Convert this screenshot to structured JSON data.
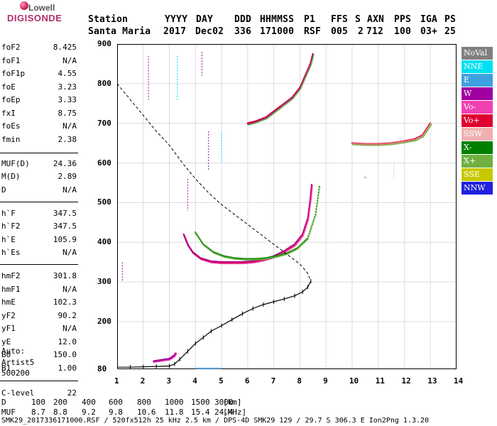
{
  "logo": {
    "line1": "Lowell",
    "line2": "DIGISONDE"
  },
  "header": {
    "col_labels": [
      "Station",
      "YYYY",
      "DAY",
      "DDD",
      "HHMMSS",
      "P1",
      "FFS",
      "S",
      "AXN",
      "PPS",
      "IGA",
      "PS"
    ],
    "values": [
      "Santa Maria",
      "2017",
      "Dec02",
      "336",
      "171000",
      "RSF",
      "005",
      "2",
      "712",
      "100",
      "03+",
      "25"
    ]
  },
  "params": [
    {
      "label": "foF2",
      "value": "8.425"
    },
    {
      "label": "foF1",
      "value": "N/A"
    },
    {
      "label": "foF1p",
      "value": "4.55"
    },
    {
      "label": "foE",
      "value": "3.23"
    },
    {
      "label": "foEp",
      "value": "3.33"
    },
    {
      "label": "fxI",
      "value": "8.75"
    },
    {
      "label": "foEs",
      "value": "N/A"
    },
    {
      "label": "fmin",
      "value": "2.38"
    },
    {
      "label": "MUF(D)",
      "value": "24.36"
    },
    {
      "label": "M(D)",
      "value": "2.89"
    },
    {
      "label": "D",
      "value": "N/A"
    },
    {
      "label": "h`F",
      "value": "347.5"
    },
    {
      "label": "h`F2",
      "value": "347.5"
    },
    {
      "label": "h`E",
      "value": "105.9"
    },
    {
      "label": "h`Es",
      "value": "N/A"
    },
    {
      "label": "hmF2",
      "value": "301.8"
    },
    {
      "label": "hmF1",
      "value": "N/A"
    },
    {
      "label": "hmE",
      "value": "102.3"
    },
    {
      "label": "yF2",
      "value": "90.2"
    },
    {
      "label": "yF1",
      "value": "N/A"
    },
    {
      "label": "yE",
      "value": "12.0"
    },
    {
      "label": "B0",
      "value": "150.0"
    },
    {
      "label": "B1",
      "value": "1.00"
    },
    {
      "label": "C-level",
      "value": "22"
    }
  ],
  "autoscaler": {
    "line1": "Auto:",
    "line2": "Artist5",
    "line3": "500200"
  },
  "legend": [
    {
      "label": "NoVal",
      "color": "#808080"
    },
    {
      "label": "NNE",
      "color": "#00e0f0"
    },
    {
      "label": "E",
      "color": "#3fa0e0"
    },
    {
      "label": "W",
      "color": "#a000a0"
    },
    {
      "label": "Vo-",
      "color": "#f040b0"
    },
    {
      "label": "Vo+",
      "color": "#e00030"
    },
    {
      "label": "SSW",
      "color": "#f0b0b0"
    },
    {
      "label": "X-",
      "color": "#008000"
    },
    {
      "label": "X+",
      "color": "#70b040"
    },
    {
      "label": "SSE",
      "color": "#c8c800"
    },
    {
      "label": "NNW",
      "color": "#2020e0"
    }
  ],
  "bottom": {
    "d_label": "D",
    "d_values": [
      "100",
      "200",
      "400",
      "600",
      "800",
      "1000",
      "1500",
      "3000"
    ],
    "d_unit": "[km]",
    "muf_label": "MUF",
    "muf_values": [
      "8.7",
      "8.8",
      "9.2",
      "9.8",
      "10.6",
      "11.8",
      "15.4",
      "24.4"
    ],
    "muf_unit": "[MHz]",
    "footer": "SMK29_2017336171000.RSF / 520fx512h 25 kHz 2.5 km / DPS-4D SMK29 129 / 29.7 S 306.3 E Ion2Png 1.3.20"
  },
  "chart_data": {
    "type": "scatter",
    "title": "",
    "xlabel": "",
    "ylabel": "",
    "xlim": [
      1,
      14
    ],
    "ylim": [
      80,
      900
    ],
    "x_ticks": [
      1,
      2,
      3,
      4,
      5,
      6,
      7,
      8,
      9,
      10,
      11,
      12,
      13,
      14
    ],
    "y_ticks": [
      80,
      200,
      300,
      400,
      500,
      600,
      700,
      800,
      900
    ],
    "grid": true,
    "series": [
      {
        "name": "edp",
        "style": "solid-with-markers",
        "x": [
          1.0,
          1.5,
          2.0,
          2.5,
          3.0,
          3.2,
          3.4,
          3.7,
          4.0,
          4.3,
          4.6,
          5.0,
          5.4,
          5.8,
          6.2,
          6.6,
          7.0,
          7.4,
          7.8,
          8.1,
          8.3,
          8.42
        ],
        "y": [
          85,
          85,
          86,
          87,
          88,
          93,
          105,
          125,
          145,
          160,
          176,
          190,
          205,
          220,
          233,
          243,
          250,
          257,
          265,
          275,
          287,
          302
        ]
      },
      {
        "name": "profile-extrapolation",
        "style": "dashed",
        "x": [
          1.0,
          1.5,
          2.0,
          2.5,
          3.0,
          3.5,
          4.0,
          4.5,
          5.0,
          5.5,
          6.0,
          6.5,
          7.0,
          7.5,
          8.0,
          8.3,
          8.42
        ],
        "y": [
          800,
          760,
          720,
          680,
          645,
          600,
          560,
          525,
          495,
          470,
          445,
          420,
          395,
          370,
          345,
          322,
          302
        ]
      },
      {
        "name": "F2-o-trace",
        "x": [
          3.55,
          3.7,
          3.9,
          4.2,
          4.6,
          5.0,
          5.4,
          5.8,
          6.2,
          6.6,
          7.0,
          7.4,
          7.8,
          8.1,
          8.3,
          8.4,
          8.45
        ],
        "y": [
          420,
          395,
          375,
          360,
          352,
          350,
          350,
          350,
          352,
          357,
          365,
          378,
          395,
          420,
          460,
          510,
          545
        ]
      },
      {
        "name": "F2-x-trace",
        "x": [
          4.0,
          4.3,
          4.7,
          5.1,
          5.5,
          5.9,
          6.3,
          6.7,
          7.1,
          7.5,
          7.9,
          8.3,
          8.6,
          8.75
        ],
        "y": [
          425,
          395,
          375,
          365,
          360,
          358,
          358,
          360,
          365,
          372,
          385,
          410,
          470,
          540
        ]
      },
      {
        "name": "multi-hop-trace",
        "x": [
          6.0,
          6.3,
          6.7,
          7.0,
          7.3,
          7.7,
          8.0,
          8.2,
          8.4,
          8.5
        ],
        "y": [
          700,
          705,
          715,
          730,
          745,
          765,
          790,
          820,
          850,
          875
        ]
      },
      {
        "name": "E-trace",
        "x": [
          2.4,
          2.6,
          2.8,
          3.0,
          3.1,
          3.2,
          3.25
        ],
        "y": [
          100,
          102,
          104,
          106,
          110,
          115,
          120
        ]
      },
      {
        "name": "upper-trace",
        "x": [
          10.0,
          10.5,
          11.0,
          11.5,
          12.0,
          12.4,
          12.7,
          12.85,
          13.0
        ],
        "y": [
          650,
          648,
          648,
          650,
          655,
          660,
          670,
          685,
          700
        ]
      }
    ]
  }
}
